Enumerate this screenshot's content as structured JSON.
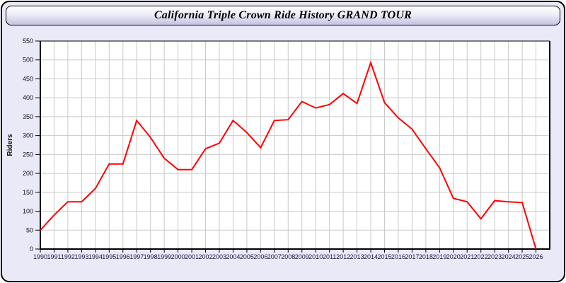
{
  "header": {
    "title": "California Triple Crown Ride History GRAND TOUR"
  },
  "colors": {
    "page_bg": "#e9e9f8",
    "plot_bg": "#ffffff",
    "grid": "#c9c9c9",
    "axis": "#000000",
    "line": "#ff0000",
    "xtick_label": "#16163f",
    "ytick_label": "#111111",
    "frame_border": "#000000"
  },
  "chart_data": {
    "type": "line",
    "title": "California Triple Crown Ride History GRAND TOUR",
    "xlabel": "",
    "ylabel": "Riders",
    "x": [
      1990,
      1991,
      1992,
      1993,
      1994,
      1995,
      1996,
      1997,
      1998,
      1999,
      2000,
      2001,
      2002,
      2003,
      2004,
      2005,
      2006,
      2007,
      2008,
      2009,
      2010,
      2011,
      2012,
      2013,
      2014,
      2015,
      2016,
      2017,
      2018,
      2019,
      2020,
      2021,
      2022,
      2023,
      2024,
      2025,
      2026
    ],
    "series": [
      {
        "name": "Riders",
        "color": "#ff0000",
        "values": [
          50,
          90,
          125,
          125,
          160,
          225,
          225,
          340,
          295,
          240,
          210,
          210,
          265,
          280,
          340,
          308,
          268,
          340,
          342,
          390,
          373,
          382,
          411,
          385,
          493,
          387,
          347,
          317,
          265,
          215,
          134,
          125,
          80,
          128,
          125,
          123,
          0
        ]
      }
    ],
    "ylim": [
      0,
      550
    ],
    "ytick_step": 50,
    "grid": true,
    "legend": false
  }
}
